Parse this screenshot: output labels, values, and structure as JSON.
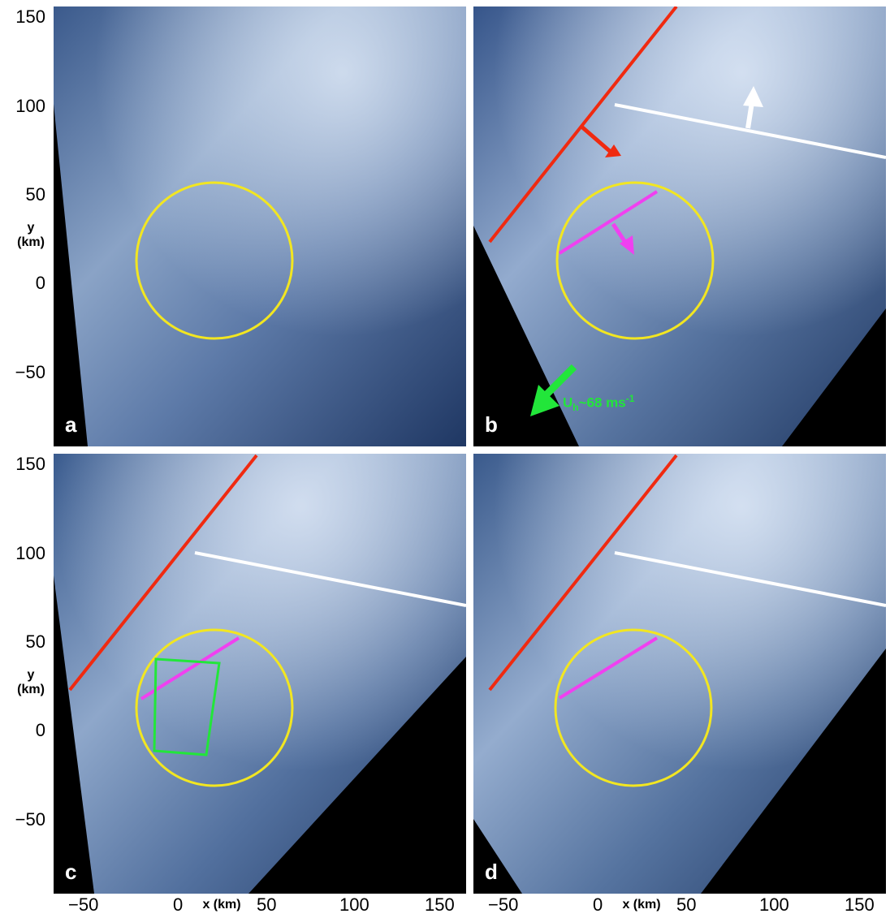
{
  "panels": [
    {
      "letter": "a"
    },
    {
      "letter": "b"
    },
    {
      "letter": "c"
    },
    {
      "letter": "d"
    }
  ],
  "y_axis": {
    "ticks": [
      "150",
      "100",
      "50",
      "0",
      "−50"
    ],
    "label_line1": "y",
    "label_line2": "(km)"
  },
  "x_axis": {
    "ticks": [
      "−50",
      "0",
      "50",
      "100",
      "150"
    ],
    "label": "x (km)"
  },
  "wind": {
    "symbol": "U",
    "subscript": "h",
    "text": "~68 ms",
    "superscript": "-1"
  },
  "colors": {
    "circle": "#f2e621",
    "red_line": "#f02a10",
    "white_line": "#ffffff",
    "magenta_line": "#f040f0",
    "green_arrow": "#22e63a",
    "green_box": "#22e63a"
  }
}
